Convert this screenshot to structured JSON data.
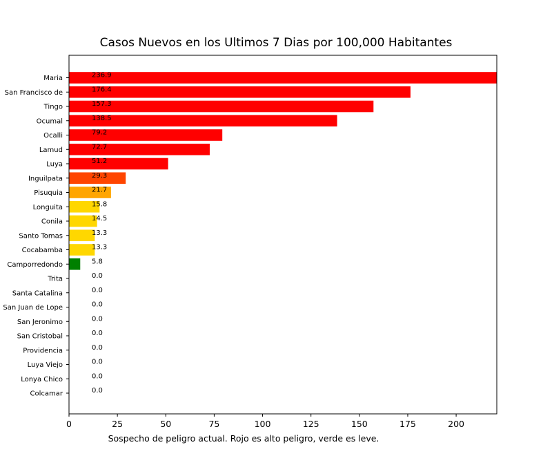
{
  "chart_data": {
    "type": "bar",
    "orientation": "horizontal",
    "title": "Casos Nuevos en los Ultimos 7 Dias por 100,000 Habitantes",
    "xlabel": "Sospecho de peligro actual. Rojo es alto peligro, verde es leve.",
    "ylabel": "",
    "xlim": [
      0,
      221
    ],
    "xticks": [
      0,
      25,
      50,
      75,
      100,
      125,
      150,
      175,
      200
    ],
    "grid": false,
    "categories": [
      "Maria",
      "San Francisco de",
      "Tingo",
      "Ocumal",
      "Ocalli",
      "Lamud",
      "Luya",
      "Inguilpata",
      "Pisuquia",
      "Longuita",
      "Conila",
      "Santo Tomas",
      "Cocabamba",
      "Camporredondo",
      "Trita",
      "Santa Catalina",
      "San Juan de Lope",
      "San Jeronimo",
      "San Cristobal",
      "Providencia",
      "Luya Viejo",
      "Lonya Chico",
      "Colcamar"
    ],
    "values": [
      236.9,
      176.4,
      157.3,
      138.5,
      79.2,
      72.7,
      51.2,
      29.3,
      21.7,
      15.8,
      14.5,
      13.3,
      13.3,
      5.8,
      0.0,
      0.0,
      0.0,
      0.0,
      0.0,
      0.0,
      0.0,
      0.0,
      0.0
    ],
    "value_labels": [
      "236.9",
      "176.4",
      "157.3",
      "138.5",
      "79.2",
      "72.7",
      "51.2",
      "29.3",
      "21.7",
      "15.8",
      "14.5",
      "13.3",
      "13.3",
      "5.8",
      "0.0",
      "0.0",
      "0.0",
      "0.0",
      "0.0",
      "0.0",
      "0.0",
      "0.0",
      "0.0"
    ],
    "bar_colors": [
      "#ff0000",
      "#ff0000",
      "#ff0000",
      "#ff0000",
      "#ff0000",
      "#ff0000",
      "#ff0000",
      "#ff4500",
      "#ffa500",
      "#ffd700",
      "#ffd700",
      "#ffd700",
      "#ffd700",
      "#008000",
      "#008000",
      "#008000",
      "#008000",
      "#008000",
      "#008000",
      "#008000",
      "#008000",
      "#008000",
      "#008000"
    ]
  }
}
